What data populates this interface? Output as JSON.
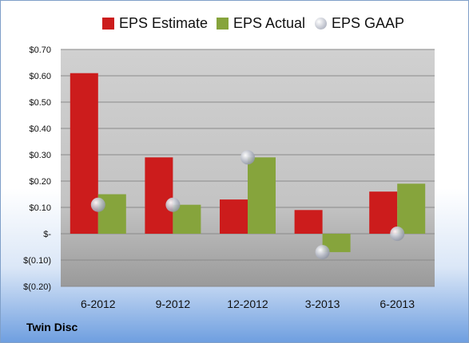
{
  "chart_data": {
    "type": "bar",
    "categories": [
      "6-2012",
      "9-2012",
      "12-2012",
      "3-2013",
      "6-2013"
    ],
    "series": [
      {
        "name": "EPS Estimate",
        "color": "#cc1c1c",
        "values": [
          0.61,
          0.29,
          0.13,
          0.09,
          0.16
        ]
      },
      {
        "name": "EPS Actual",
        "color": "#86a43c",
        "values": [
          0.15,
          0.11,
          0.29,
          -0.07,
          0.19
        ]
      },
      {
        "name": "EPS GAAP",
        "color": "#b8bcc8",
        "marker": "circle",
        "values": [
          0.11,
          0.11,
          0.29,
          -0.07,
          0.0
        ]
      }
    ],
    "y_tick_labels": [
      "$0.70",
      "$0.60",
      "$0.50",
      "$0.40",
      "$0.30",
      "$0.20",
      "$0.10",
      "$-",
      "$(0.10)",
      "$(0.20)"
    ],
    "y_ticks": [
      0.7,
      0.6,
      0.5,
      0.4,
      0.3,
      0.2,
      0.1,
      0,
      -0.1,
      -0.2
    ],
    "ylim": [
      -0.2,
      0.7
    ],
    "grid": true,
    "legend_position": "top"
  },
  "company_label": "Twin Disc"
}
